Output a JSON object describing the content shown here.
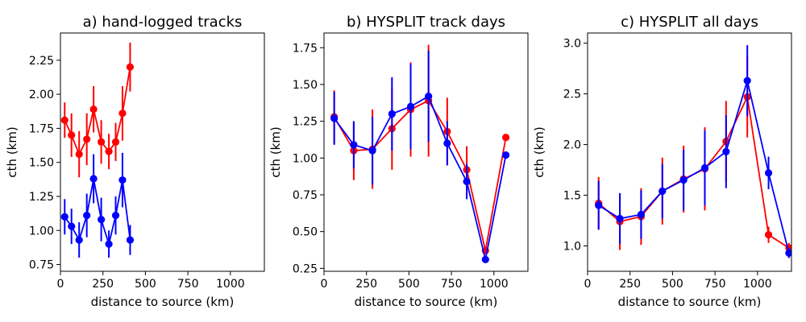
{
  "chart_data": [
    {
      "type": "line",
      "title": "a) hand-logged tracks",
      "xlabel": "distance to source (km)",
      "ylabel": "cth (km)",
      "xlim": [
        0,
        1200
      ],
      "ylim": [
        0.7,
        2.45
      ],
      "xticks": [
        0,
        250,
        500,
        750,
        1000
      ],
      "yticks": [
        0.75,
        1.0,
        1.25,
        1.5,
        1.75,
        2.0,
        2.25
      ],
      "series": [
        {
          "name": "red",
          "color": "#ff0000",
          "x": [
            25,
            65,
            110,
            155,
            195,
            240,
            285,
            325,
            365,
            410
          ],
          "y": [
            1.81,
            1.7,
            1.56,
            1.67,
            1.89,
            1.65,
            1.58,
            1.65,
            1.86,
            2.2
          ],
          "err": [
            0.13,
            0.16,
            0.17,
            0.19,
            0.17,
            0.16,
            0.13,
            0.14,
            0.2,
            0.18
          ]
        },
        {
          "name": "blue",
          "color": "#0000ff",
          "x": [
            25,
            65,
            110,
            155,
            195,
            240,
            285,
            325,
            365,
            410
          ],
          "y": [
            1.1,
            1.03,
            0.93,
            1.11,
            1.38,
            1.08,
            0.9,
            1.11,
            1.37,
            0.93
          ],
          "err": [
            0.13,
            0.13,
            0.13,
            0.16,
            0.18,
            0.16,
            0.1,
            0.14,
            0.2,
            0.11
          ]
        }
      ]
    },
    {
      "type": "line",
      "title": "b) HYSPLIT track days",
      "xlabel": "distance to source (km)",
      "ylabel": "cth (km)",
      "xlim": [
        0,
        1200
      ],
      "ylim": [
        0.23,
        1.85
      ],
      "xticks": [
        0,
        250,
        500,
        750,
        1000
      ],
      "yticks": [
        0.25,
        0.5,
        0.75,
        1.0,
        1.25,
        1.5,
        1.75
      ],
      "series": [
        {
          "name": "red",
          "color": "#ff0000",
          "x": [
            60,
            175,
            285,
            400,
            510,
            615,
            725,
            840,
            950,
            1070
          ],
          "y": [
            1.28,
            1.05,
            1.06,
            1.2,
            1.33,
            1.39,
            1.18,
            0.92,
            0.37,
            1.14
          ],
          "err": [
            0.18,
            0.2,
            0.27,
            0.28,
            0.32,
            0.38,
            0.23,
            0.16,
            0.0,
            0.0
          ]
        },
        {
          "name": "blue",
          "color": "#0000ff",
          "x": [
            60,
            175,
            285,
            400,
            510,
            615,
            725,
            840,
            950,
            1070
          ],
          "y": [
            1.27,
            1.09,
            1.05,
            1.3,
            1.35,
            1.42,
            1.1,
            0.84,
            0.31,
            1.02
          ],
          "err": [
            0.18,
            0.16,
            0.23,
            0.25,
            0.29,
            0.31,
            0.15,
            0.12,
            0.0,
            0.0
          ]
        }
      ]
    },
    {
      "type": "line",
      "title": "c) HYSPLIT all days",
      "xlabel": "distance to source (km)",
      "ylabel": "cth (km)",
      "xlim": [
        0,
        1200
      ],
      "ylim": [
        0.75,
        3.1
      ],
      "xticks": [
        0,
        250,
        500,
        750,
        1000
      ],
      "yticks": [
        1.0,
        1.5,
        2.0,
        2.5,
        3.0
      ],
      "series": [
        {
          "name": "red",
          "color": "#ff0000",
          "x": [
            65,
            190,
            315,
            440,
            565,
            690,
            815,
            940,
            1065,
            1185
          ],
          "y": [
            1.42,
            1.24,
            1.29,
            1.54,
            1.66,
            1.76,
            2.03,
            2.47,
            1.11,
            0.98
          ],
          "err": [
            0.26,
            0.28,
            0.28,
            0.33,
            0.33,
            0.41,
            0.4,
            0.4,
            0.08,
            0.05
          ]
        },
        {
          "name": "blue",
          "color": "#0000ff",
          "x": [
            65,
            190,
            315,
            440,
            565,
            690,
            815,
            940,
            1065,
            1185
          ],
          "y": [
            1.4,
            1.27,
            1.31,
            1.54,
            1.65,
            1.77,
            1.93,
            2.63,
            1.72,
            0.93
          ],
          "err": [
            0.24,
            0.25,
            0.24,
            0.27,
            0.3,
            0.37,
            0.36,
            0.35,
            0.16,
            0.05
          ]
        }
      ]
    }
  ]
}
